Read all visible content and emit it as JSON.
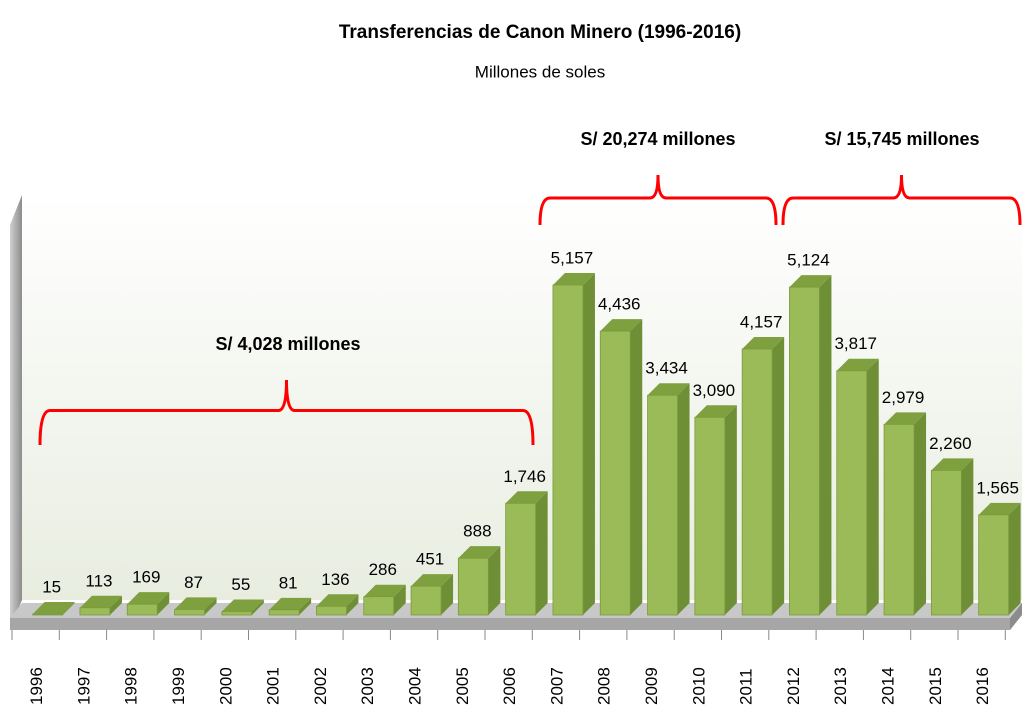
{
  "chart_data": {
    "type": "bar3d",
    "title": "Transferencias de Canon Minero (1996-2016)",
    "subtitle": "Millones de soles",
    "categories": [
      "1996",
      "1997",
      "1998",
      "1999",
      "2000",
      "2001",
      "2002",
      "2003",
      "2004",
      "2005",
      "2006",
      "2007",
      "2008",
      "2009",
      "2010",
      "2011",
      "2012",
      "2013",
      "2014",
      "2015",
      "2016"
    ],
    "values": [
      15,
      113,
      169,
      87,
      55,
      81,
      136,
      286,
      451,
      888,
      1746,
      5157,
      4436,
      3434,
      3090,
      4157,
      5124,
      3817,
      2979,
      2260,
      1565
    ],
    "value_labels": [
      "15",
      "113",
      "169",
      "87",
      "55",
      "81",
      "136",
      "286",
      "451",
      "888",
      "1,746",
      "5,157",
      "4,436",
      "3,434",
      "3,090",
      "4,157",
      "5,124",
      "3,817",
      "2,979",
      "2,260",
      "1,565"
    ],
    "color": "#9bbb59",
    "annotations": [
      "S/ 4,028 millones",
      "S/ 20,274 millones",
      "S/ 15,745 millones"
    ],
    "bracket_color": "#ff0000"
  }
}
